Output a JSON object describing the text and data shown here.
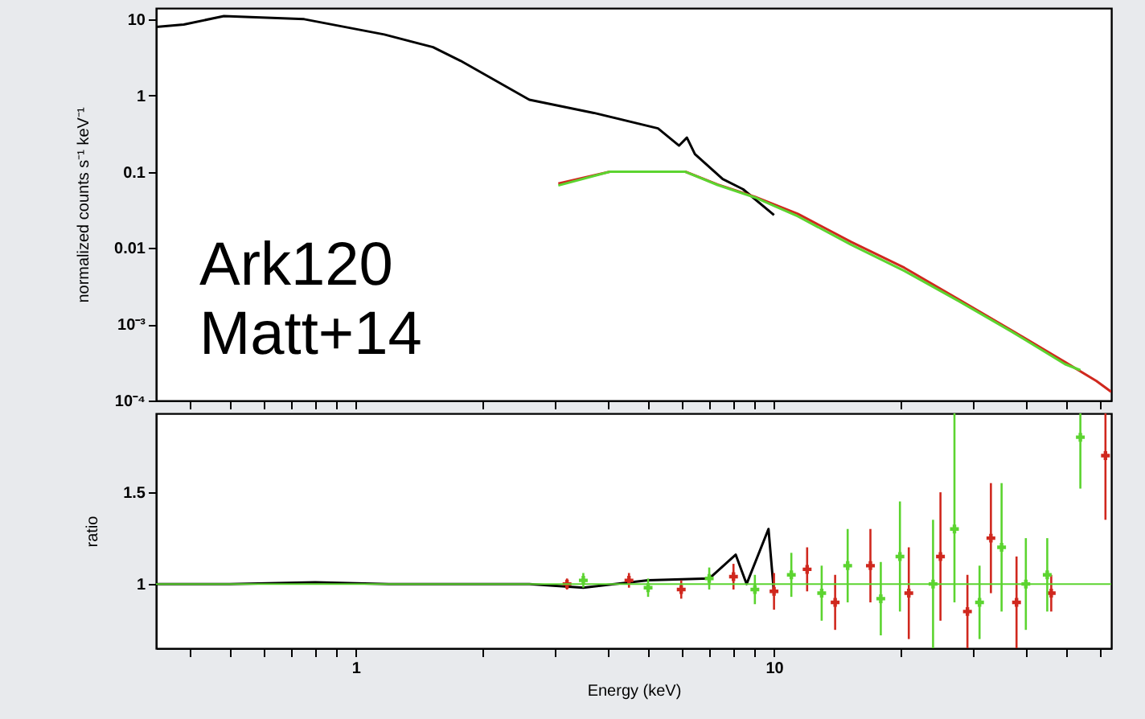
{
  "chart_data": [
    {
      "type": "line",
      "ylabel": "normalized counts s⁻¹ keV⁻¹",
      "log": "xy",
      "tick_labels": "y",
      "xlim": [
        0.333,
        64
      ],
      "ylim": [
        0.0001,
        14
      ],
      "xticks": [
        {
          "value": 0.4,
          "label": null
        },
        {
          "value": 0.5,
          "label": null
        },
        {
          "value": 0.6,
          "label": null
        },
        {
          "value": 0.7,
          "label": null
        },
        {
          "value": 0.8,
          "label": null
        },
        {
          "value": 0.9,
          "label": null
        },
        {
          "value": 1,
          "label": null
        },
        {
          "value": 2,
          "label": null
        },
        {
          "value": 3,
          "label": null
        },
        {
          "value": 4,
          "label": null
        },
        {
          "value": 5,
          "label": null
        },
        {
          "value": 6,
          "label": null
        },
        {
          "value": 7,
          "label": null
        },
        {
          "value": 8,
          "label": null
        },
        {
          "value": 9,
          "label": null
        },
        {
          "value": 10,
          "label": null
        },
        {
          "value": 20,
          "label": null
        },
        {
          "value": 30,
          "label": null
        },
        {
          "value": 40,
          "label": null
        },
        {
          "value": 50,
          "label": null
        },
        {
          "value": 60,
          "label": null
        }
      ],
      "yticks": [
        {
          "value": 0.0001,
          "label": "10⁻⁴"
        },
        {
          "value": 0.001,
          "label": "10⁻³"
        },
        0.01,
        0.1,
        1,
        10
      ],
      "annotations": [
        "Ark120",
        "Matt+14"
      ],
      "series": [
        {
          "color": "#000000",
          "x": [
            0.333,
            0.388,
            0.484,
            0.753,
            1.17,
            1.53,
            1.78,
            null,
            2.6,
            3.71,
            5.28,
            5.93,
            6.19,
            6.47,
            7.54,
            8.43,
            10.0
          ],
          "values": [
            7.9,
            8.5,
            11,
            10,
            6.3,
            4.3,
            2.85,
            null,
            0.88,
            0.59,
            0.37,
            0.22,
            0.28,
            0.17,
            0.08,
            0.059,
            0.027
          ]
        },
        {
          "color": "#d0281e",
          "x": [
            3.05,
            4.05,
            6.14,
            7.33,
            9.0,
            11.4,
            15.3,
            20.5,
            27.7,
            37.0,
            49.6,
            59,
            64
          ],
          "values": [
            0.07,
            0.1,
            0.1,
            0.068,
            0.047,
            0.028,
            0.012,
            0.0055,
            0.0021,
            0.00083,
            0.00032,
            0.00018,
            0.00013
          ]
        },
        {
          "color": "#5cd430",
          "x": [
            3.05,
            4.05,
            6.14,
            7.33,
            9.0,
            11.4,
            15.3,
            20.5,
            27.7,
            37.0,
            49.6,
            54
          ],
          "values": [
            0.066,
            0.1,
            0.1,
            0.067,
            0.046,
            0.026,
            0.011,
            0.005,
            0.002,
            0.0008,
            0.0003,
            0.00025
          ]
        }
      ]
    },
    {
      "type": "scatter",
      "xlabel": "Energy (keV)",
      "ylabel": "ratio",
      "log": "x",
      "xlim": [
        0.333,
        64
      ],
      "ylim": [
        0.65,
        1.93
      ],
      "xticks": [
        {
          "value": 0.4,
          "label": null
        },
        {
          "value": 0.5,
          "label": null
        },
        {
          "value": 0.6,
          "label": null
        },
        {
          "value": 0.7,
          "label": null
        },
        {
          "value": 0.8,
          "label": null
        },
        {
          "value": 0.9,
          "label": null
        },
        1,
        {
          "value": 2,
          "label": null
        },
        {
          "value": 3,
          "label": null
        },
        {
          "value": 4,
          "label": null
        },
        {
          "value": 5,
          "label": null
        },
        {
          "value": 6,
          "label": null
        },
        {
          "value": 7,
          "label": null
        },
        {
          "value": 8,
          "label": null
        },
        {
          "value": 9,
          "label": null
        },
        10,
        {
          "value": 20,
          "label": null
        },
        {
          "value": 30,
          "label": null
        },
        {
          "value": 40,
          "label": null
        },
        {
          "value": 50,
          "label": null
        },
        {
          "value": 60,
          "label": null
        }
      ],
      "yticks": [
        1,
        1.5
      ],
      "ref_lines": [
        {
          "axis": "y",
          "value": 1,
          "color": "#5cd430"
        }
      ],
      "series": [
        {
          "type": "line",
          "color": "#000000",
          "x": [
            0.333,
            0.5,
            0.8,
            1.2,
            1.78,
            null,
            2.6,
            3.5,
            5,
            7,
            8.1,
            8.6,
            9.7,
            10
          ],
          "values": [
            1.0,
            1.0,
            1.01,
            1.0,
            1.0,
            null,
            1.0,
            0.98,
            1.02,
            1.03,
            1.16,
            1.0,
            1.3,
            0.95
          ]
        },
        {
          "color": "#d0281e",
          "marker": "cross",
          "x": [
            3.2,
            4.5,
            6,
            8,
            10,
            12,
            14,
            17,
            21,
            25,
            29,
            33,
            38,
            46,
            62
          ],
          "values": [
            1.0,
            1.02,
            0.97,
            1.04,
            0.96,
            1.08,
            0.9,
            1.1,
            0.95,
            1.15,
            0.85,
            1.25,
            0.9,
            0.95,
            1.7
          ],
          "errors": [
            0.03,
            0.04,
            0.05,
            0.07,
            0.1,
            0.12,
            0.15,
            0.2,
            0.25,
            0.35,
            0.2,
            0.3,
            0.25,
            0.1,
            [
              1.35,
              1.93
            ]
          ]
        },
        {
          "color": "#5cd430",
          "marker": "cross",
          "x": [
            3.5,
            5,
            7,
            9,
            11,
            13,
            15,
            18,
            20,
            24,
            27,
            31,
            35,
            40,
            45,
            54
          ],
          "values": [
            1.02,
            0.98,
            1.03,
            0.97,
            1.05,
            0.95,
            1.1,
            0.92,
            1.15,
            1.0,
            1.3,
            0.9,
            1.2,
            1.0,
            1.05,
            1.8
          ],
          "errors": [
            0.04,
            0.05,
            0.06,
            0.08,
            0.12,
            0.15,
            0.2,
            0.2,
            0.3,
            0.35,
            [
              0.9,
              1.93
            ],
            0.2,
            0.35,
            0.25,
            0.2,
            [
              1.52,
              1.93
            ]
          ]
        }
      ]
    }
  ]
}
